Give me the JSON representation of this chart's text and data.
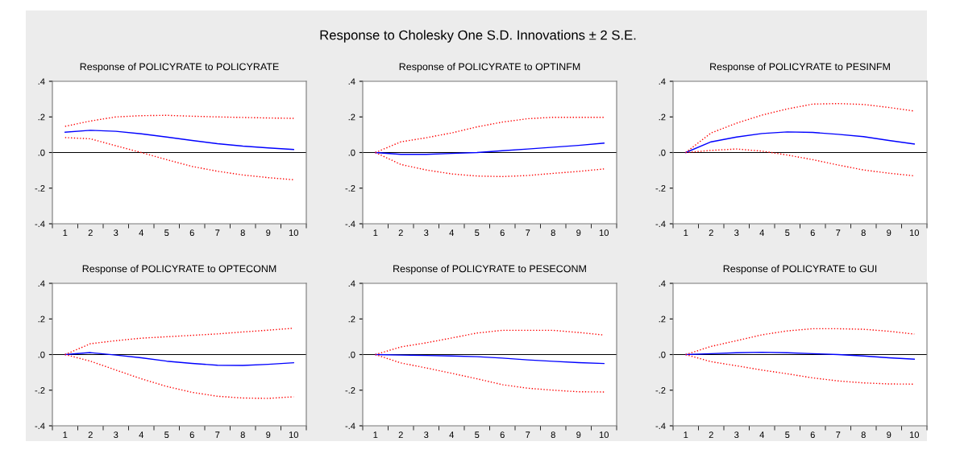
{
  "chart_data": [
    {
      "type": "line",
      "title": "Response of POLICYRATE to POLICYRATE",
      "annotations": [
        "Response to Cholesky One S.D. Innovations ± 2 S.E."
      ],
      "categories": [
        "1",
        "2",
        "3",
        "4",
        "5",
        "6",
        "7",
        "8",
        "9",
        "10"
      ],
      "ylim": [
        -0.4,
        0.4
      ],
      "yticks": [
        {
          "value": -0.4,
          "label": "-.4"
        },
        {
          "value": -0.2,
          "label": "-.2"
        },
        {
          "value": 0,
          "label": ".0"
        },
        {
          "value": 0.2,
          "label": ".2"
        },
        {
          "value": 0.4,
          "label": ".4"
        }
      ],
      "ref_lines": [
        {
          "axis": "y",
          "value": 0,
          "color": "#000000"
        }
      ],
      "series": [
        {
          "color": "#0000ff",
          "line_style": "solid",
          "values": [
            0.114,
            0.125,
            0.119,
            0.105,
            0.087,
            0.068,
            0.05,
            0.036,
            0.026,
            0.017
          ]
        },
        {
          "color": "#ff0000",
          "line_style": "dotted",
          "values": [
            0.147,
            0.177,
            0.2,
            0.207,
            0.209,
            0.204,
            0.2,
            0.197,
            0.194,
            0.192
          ]
        },
        {
          "color": "#ff0000",
          "line_style": "dotted",
          "values": [
            0.084,
            0.077,
            0.038,
            0.0,
            -0.04,
            -0.078,
            -0.105,
            -0.126,
            -0.141,
            -0.153
          ]
        }
      ]
    },
    {
      "type": "line",
      "title": "Response of POLICYRATE to OPTINFM",
      "categories": [
        "1",
        "2",
        "3",
        "4",
        "5",
        "6",
        "7",
        "8",
        "9",
        "10"
      ],
      "ylim": [
        -0.4,
        0.4
      ],
      "yticks": [
        {
          "value": -0.4,
          "label": "-.4"
        },
        {
          "value": -0.2,
          "label": "-.2"
        },
        {
          "value": 0,
          "label": ".0"
        },
        {
          "value": 0.2,
          "label": ".2"
        },
        {
          "value": 0.4,
          "label": ".4"
        }
      ],
      "ref_lines": [
        {
          "axis": "y",
          "value": 0,
          "color": "#000000"
        }
      ],
      "series": [
        {
          "color": "#0000ff",
          "line_style": "solid",
          "values": [
            0.0,
            -0.01,
            -0.01,
            -0.005,
            0.0,
            0.01,
            0.02,
            0.03,
            0.04,
            0.053
          ]
        },
        {
          "color": "#ff0000",
          "line_style": "dotted",
          "values": [
            0.0,
            0.06,
            0.083,
            0.11,
            0.144,
            0.171,
            0.19,
            0.198,
            0.198,
            0.198
          ]
        },
        {
          "color": "#ff0000",
          "line_style": "dotted",
          "values": [
            0.0,
            -0.067,
            -0.098,
            -0.12,
            -0.132,
            -0.135,
            -0.129,
            -0.117,
            -0.106,
            -0.092
          ]
        }
      ]
    },
    {
      "type": "line",
      "title": "Response of POLICYRATE to PESINFM",
      "categories": [
        "1",
        "2",
        "3",
        "4",
        "5",
        "6",
        "7",
        "8",
        "9",
        "10"
      ],
      "ylim": [
        -0.4,
        0.4
      ],
      "yticks": [
        {
          "value": -0.4,
          "label": "-.4"
        },
        {
          "value": -0.2,
          "label": "-.2"
        },
        {
          "value": 0,
          "label": ".0"
        },
        {
          "value": 0.2,
          "label": ".2"
        },
        {
          "value": 0.4,
          "label": ".4"
        }
      ],
      "ref_lines": [
        {
          "axis": "y",
          "value": 0,
          "color": "#000000"
        }
      ],
      "series": [
        {
          "color": "#0000ff",
          "line_style": "solid",
          "values": [
            0.0,
            0.06,
            0.087,
            0.107,
            0.116,
            0.113,
            0.102,
            0.089,
            0.068,
            0.048
          ]
        },
        {
          "color": "#ff0000",
          "line_style": "dotted",
          "values": [
            0.0,
            0.11,
            0.165,
            0.21,
            0.245,
            0.272,
            0.275,
            0.27,
            0.253,
            0.233
          ]
        },
        {
          "color": "#ff0000",
          "line_style": "dotted",
          "values": [
            0.0,
            0.012,
            0.02,
            0.008,
            -0.014,
            -0.04,
            -0.07,
            -0.098,
            -0.116,
            -0.131
          ]
        }
      ]
    },
    {
      "type": "line",
      "title": "Response of POLICYRATE to OPTECONM",
      "categories": [
        "1",
        "2",
        "3",
        "4",
        "5",
        "6",
        "7",
        "8",
        "9",
        "10"
      ],
      "ylim": [
        -0.4,
        0.4
      ],
      "yticks": [
        {
          "value": -0.4,
          "label": "-.4"
        },
        {
          "value": -0.2,
          "label": "-.2"
        },
        {
          "value": 0,
          "label": ".0"
        },
        {
          "value": 0.2,
          "label": ".2"
        },
        {
          "value": 0.4,
          "label": ".4"
        }
      ],
      "ref_lines": [
        {
          "axis": "y",
          "value": 0,
          "color": "#000000"
        }
      ],
      "series": [
        {
          "color": "#0000ff",
          "line_style": "solid",
          "values": [
            0.0,
            0.011,
            -0.003,
            -0.018,
            -0.037,
            -0.05,
            -0.06,
            -0.061,
            -0.055,
            -0.046
          ]
        },
        {
          "color": "#ff0000",
          "line_style": "dotted",
          "values": [
            0.0,
            0.061,
            0.078,
            0.092,
            0.1,
            0.108,
            0.116,
            0.127,
            0.137,
            0.148
          ]
        },
        {
          "color": "#ff0000",
          "line_style": "dotted",
          "values": [
            0.0,
            -0.037,
            -0.087,
            -0.136,
            -0.179,
            -0.212,
            -0.234,
            -0.244,
            -0.246,
            -0.237
          ]
        }
      ]
    },
    {
      "type": "line",
      "title": "Response of POLICYRATE to PESECONM",
      "categories": [
        "1",
        "2",
        "3",
        "4",
        "5",
        "6",
        "7",
        "8",
        "9",
        "10"
      ],
      "ylim": [
        -0.4,
        0.4
      ],
      "yticks": [
        {
          "value": -0.4,
          "label": "-.4"
        },
        {
          "value": -0.2,
          "label": "-.2"
        },
        {
          "value": 0,
          "label": ".0"
        },
        {
          "value": 0.2,
          "label": ".2"
        },
        {
          "value": 0.4,
          "label": ".4"
        }
      ],
      "ref_lines": [
        {
          "axis": "y",
          "value": 0,
          "color": "#000000"
        }
      ],
      "series": [
        {
          "color": "#0000ff",
          "line_style": "solid",
          "values": [
            0.0,
            -0.003,
            -0.005,
            -0.008,
            -0.012,
            -0.02,
            -0.03,
            -0.038,
            -0.045,
            -0.05
          ]
        },
        {
          "color": "#ff0000",
          "line_style": "dotted",
          "values": [
            0.0,
            0.043,
            0.066,
            0.093,
            0.121,
            0.136,
            0.136,
            0.136,
            0.124,
            0.11
          ]
        },
        {
          "color": "#ff0000",
          "line_style": "dotted",
          "values": [
            0.0,
            -0.047,
            -0.075,
            -0.105,
            -0.136,
            -0.169,
            -0.189,
            -0.2,
            -0.209,
            -0.21
          ]
        }
      ]
    },
    {
      "type": "line",
      "title": "Response of POLICYRATE to GUI",
      "categories": [
        "1",
        "2",
        "3",
        "4",
        "5",
        "6",
        "7",
        "8",
        "9",
        "10"
      ],
      "ylim": [
        -0.4,
        0.4
      ],
      "yticks": [
        {
          "value": -0.4,
          "label": "-.4"
        },
        {
          "value": -0.2,
          "label": "-.2"
        },
        {
          "value": 0,
          "label": ".0"
        },
        {
          "value": 0.2,
          "label": ".2"
        },
        {
          "value": 0.4,
          "label": ".4"
        }
      ],
      "ref_lines": [
        {
          "axis": "y",
          "value": 0,
          "color": "#000000"
        }
      ],
      "series": [
        {
          "color": "#0000ff",
          "line_style": "solid",
          "values": [
            0.0,
            0.005,
            0.01,
            0.013,
            0.01,
            0.005,
            0.0,
            -0.008,
            -0.018,
            -0.026
          ]
        },
        {
          "color": "#ff0000",
          "line_style": "dotted",
          "values": [
            0.0,
            0.046,
            0.078,
            0.111,
            0.133,
            0.145,
            0.145,
            0.142,
            0.131,
            0.115
          ]
        },
        {
          "color": "#ff0000",
          "line_style": "dotted",
          "values": [
            0.0,
            -0.04,
            -0.063,
            -0.087,
            -0.108,
            -0.131,
            -0.148,
            -0.159,
            -0.165,
            -0.166
          ]
        }
      ]
    }
  ]
}
